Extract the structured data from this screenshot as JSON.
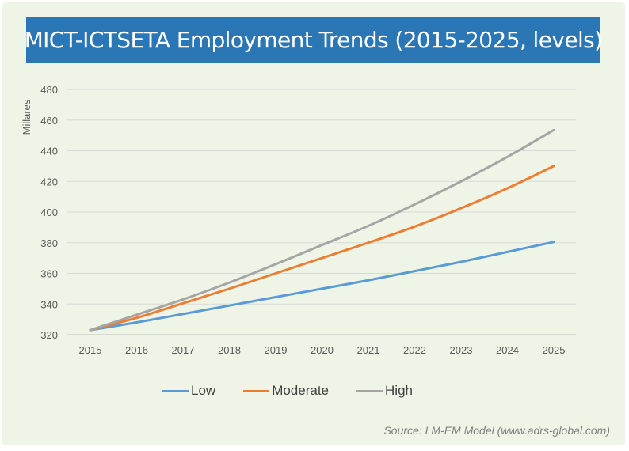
{
  "chart_data": {
    "type": "line",
    "title": "MICT-ICTSETA Employment Trends (2015-2025, levels)",
    "ylabel": "Millares",
    "xlabel": "",
    "ylim": [
      320,
      480
    ],
    "yticks": [
      320,
      340,
      360,
      380,
      400,
      420,
      440,
      460,
      480
    ],
    "categories": [
      "2015",
      "2016",
      "2017",
      "2018",
      "2019",
      "2020",
      "2021",
      "2022",
      "2023",
      "2024",
      "2025"
    ],
    "grid": true,
    "legend_position": "bottom",
    "series": [
      {
        "name": "Low",
        "color": "#5b9bd5",
        "values": [
          323,
          328,
          333.5,
          339,
          344.5,
          350,
          355.5,
          361.5,
          367.5,
          374,
          380.5
        ]
      },
      {
        "name": "Moderate",
        "color": "#ed7d31",
        "values": [
          323,
          331,
          340.5,
          350,
          360,
          370,
          380,
          390.5,
          402.5,
          415.5,
          430
        ]
      },
      {
        "name": "High",
        "color": "#a5a5a5",
        "values": [
          323,
          333,
          343,
          354,
          366,
          378.5,
          391,
          405,
          420,
          436,
          453.5
        ]
      }
    ],
    "source": "Source: LM-EM Model (www.adrs-global.com)"
  }
}
